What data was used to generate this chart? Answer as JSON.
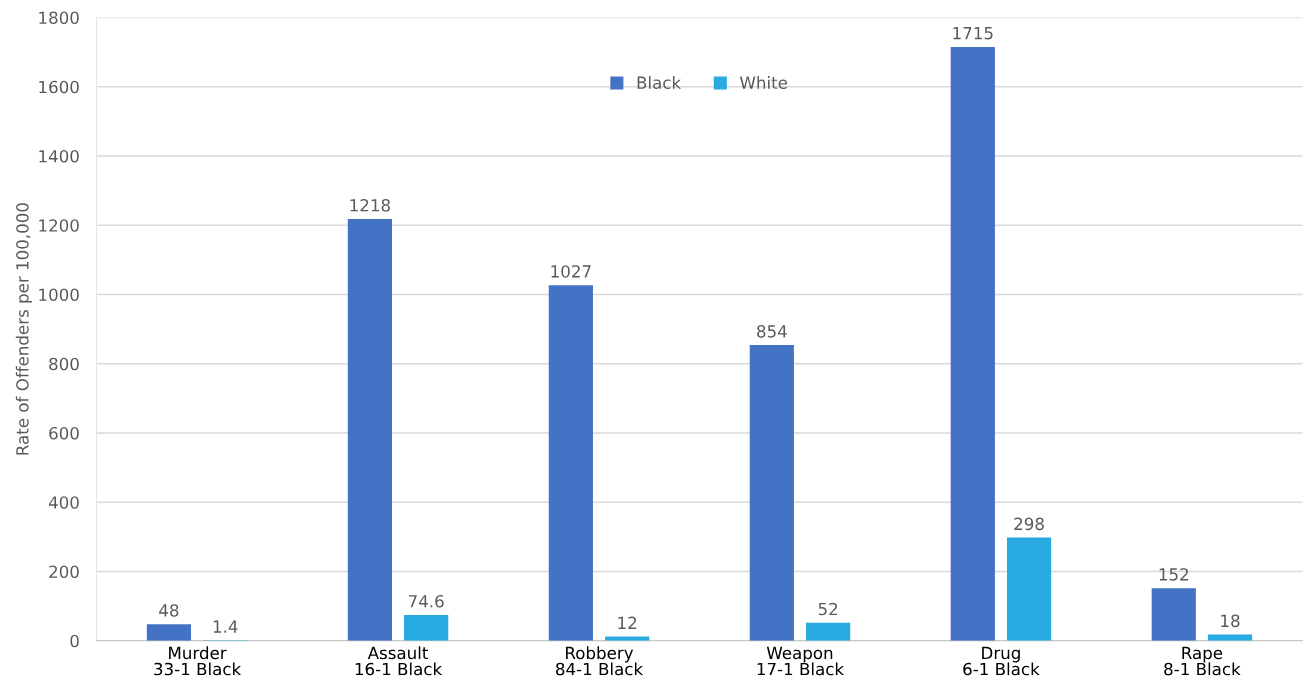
{
  "chart_data": {
    "type": "bar",
    "ylabel": "Rate of Offenders per 100,000",
    "categories": [
      "Murder\n33-1 Black",
      "Assault\n16-1 Black",
      "Robbery\n84-1 Black",
      "Weapon\n17-1 Black",
      "Drug\n6-1 Black",
      "Rape\n8-1 Black"
    ],
    "series": [
      {
        "name": "Black",
        "color": "#4472c4",
        "values": [
          48,
          1218,
          1027,
          854,
          1715,
          152
        ]
      },
      {
        "name": "White",
        "color": "#29abe2",
        "values": [
          1.4,
          74.6,
          12,
          52,
          298,
          18
        ]
      }
    ],
    "ylim": [
      0,
      1800
    ],
    "yticks": [
      0,
      200,
      400,
      600,
      800,
      1000,
      1200,
      1400,
      1600,
      1800
    ],
    "grid": "y",
    "legend": "top",
    "data_labels": true
  }
}
